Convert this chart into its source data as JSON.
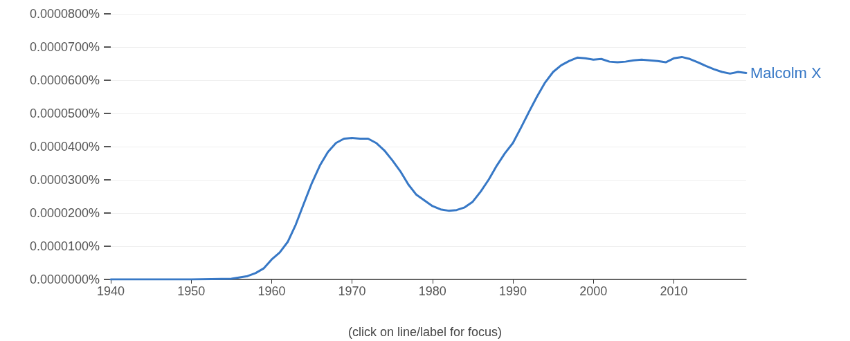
{
  "chart_data": {
    "type": "line",
    "annotations": [
      "(click on line/label for focus)"
    ],
    "x": [
      1940,
      1945,
      1950,
      1955,
      1957,
      1958,
      1959,
      1960,
      1961,
      1962,
      1963,
      1964,
      1965,
      1966,
      1967,
      1968,
      1969,
      1970,
      1971,
      1972,
      1973,
      1974,
      1975,
      1976,
      1977,
      1978,
      1979,
      1980,
      1981,
      1982,
      1983,
      1984,
      1985,
      1986,
      1987,
      1988,
      1989,
      1990,
      1991,
      1992,
      1993,
      1994,
      1995,
      1996,
      1997,
      1998,
      1999,
      2000,
      2001,
      2002,
      2003,
      2004,
      2005,
      2006,
      2007,
      2008,
      2009,
      2010,
      2011,
      2012,
      2013,
      2014,
      2015,
      2016,
      2017,
      2018,
      2019
    ],
    "series": [
      {
        "name": "Malcolm X",
        "color": "#3778c6",
        "values": [
          0,
          0,
          0,
          2e-07,
          1e-06,
          1.9e-06,
          3.3e-06,
          6e-06,
          8.1e-06,
          1.13e-05,
          1.65e-05,
          2.28e-05,
          2.9e-05,
          3.43e-05,
          3.84e-05,
          4.11e-05,
          4.24e-05,
          4.26e-05,
          4.24e-05,
          4.24e-05,
          4.11e-05,
          3.89e-05,
          3.59e-05,
          3.26e-05,
          2.86e-05,
          2.55e-05,
          2.38e-05,
          2.21e-05,
          2.11e-05,
          2.07e-05,
          2.09e-05,
          2.17e-05,
          2.34e-05,
          2.65e-05,
          3.01e-05,
          3.43e-05,
          3.8e-05,
          4.11e-05,
          4.57e-05,
          5.05e-05,
          5.51e-05,
          5.93e-05,
          6.25e-05,
          6.45e-05,
          6.58e-05,
          6.68e-05,
          6.66e-05,
          6.62e-05,
          6.64e-05,
          6.56e-05,
          6.54e-05,
          6.56e-05,
          6.6e-05,
          6.62e-05,
          6.6e-05,
          6.58e-05,
          6.54e-05,
          6.66e-05,
          6.7e-05,
          6.64e-05,
          6.54e-05,
          6.43e-05,
          6.33e-05,
          6.25e-05,
          6.2e-05,
          6.25e-05,
          6.22e-05
        ]
      }
    ],
    "xlim": [
      1940,
      2019
    ],
    "xticks": [
      1940,
      1950,
      1960,
      1970,
      1980,
      1990,
      2000,
      2010
    ],
    "ylim": [
      0,
      8e-05
    ],
    "yticks": [
      {
        "value": 0,
        "label": "0.0000000%"
      },
      {
        "value": 1e-05,
        "label": "0.0000100%"
      },
      {
        "value": 2e-05,
        "label": "0.0000200%"
      },
      {
        "value": 3e-05,
        "label": "0.0000300%"
      },
      {
        "value": 4e-05,
        "label": "0.0000400%"
      },
      {
        "value": 5e-05,
        "label": "0.0000500%"
      },
      {
        "value": 6e-05,
        "label": "0.0000600%"
      },
      {
        "value": 7e-05,
        "label": "0.0000700%"
      },
      {
        "value": 8e-05,
        "label": "0.0000800%"
      }
    ],
    "grid": "y",
    "legend": false,
    "marker": "none",
    "line_style": "solid"
  }
}
